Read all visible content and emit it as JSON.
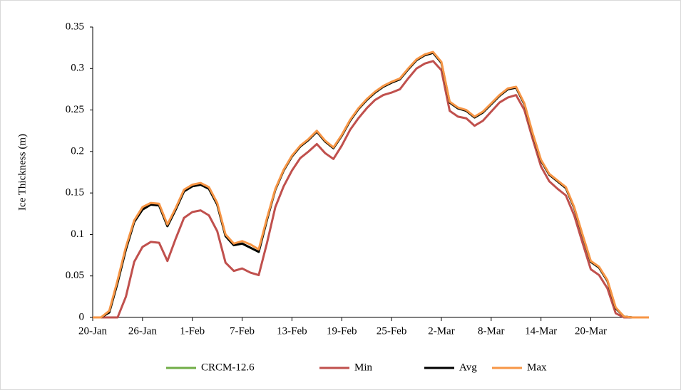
{
  "chart_data": {
    "type": "line",
    "y_label": "Ice Thickness (m)",
    "categories": [
      "20-Jan",
      null,
      null,
      null,
      null,
      null,
      "26-Jan",
      null,
      null,
      null,
      null,
      null,
      "1-Feb",
      null,
      null,
      null,
      null,
      null,
      "7-Feb",
      null,
      null,
      null,
      null,
      null,
      "13-Feb",
      null,
      null,
      null,
      null,
      null,
      "19-Feb",
      null,
      null,
      null,
      null,
      null,
      "25-Feb",
      null,
      null,
      null,
      null,
      null,
      "2-Mar",
      null,
      null,
      null,
      null,
      null,
      "8-Mar",
      null,
      null,
      null,
      null,
      null,
      "14-Mar",
      null,
      null,
      null,
      null,
      null,
      "20-Mar",
      null,
      null,
      null,
      null,
      null,
      null,
      null
    ],
    "ylim": [
      0,
      0.35
    ],
    "yticks": [
      0,
      0.05,
      0.1,
      0.15,
      0.2,
      0.25,
      0.3,
      0.35
    ],
    "grid": false,
    "legend": "bottom",
    "series": [
      {
        "name": "CRCM-12.6",
        "color": "#70ad47",
        "values": [
          0,
          0,
          0.006,
          0.042,
          0.082,
          0.115,
          0.13,
          0.136,
          0.135,
          0.11,
          0.13,
          0.152,
          0.158,
          0.16,
          0.155,
          0.136,
          0.098,
          0.087,
          0.089,
          0.084,
          0.079,
          0.118,
          0.154,
          0.177,
          0.194,
          0.206,
          0.214,
          0.224,
          0.212,
          0.204,
          0.219,
          0.237,
          0.251,
          0.262,
          0.271,
          0.278,
          0.283,
          0.287,
          0.299,
          0.31,
          0.316,
          0.319,
          0.307,
          0.259,
          0.252,
          0.249,
          0.241,
          0.247,
          0.257,
          0.267,
          0.275,
          0.277,
          0.257,
          0.221,
          0.189,
          0.172,
          0.164,
          0.156,
          0.132,
          0.099,
          0.067,
          0.06,
          0.044,
          0.011,
          0.001,
          0,
          0,
          0
        ]
      },
      {
        "name": "Min",
        "color": "#c0504d",
        "values": [
          0,
          0,
          0,
          0,
          0.025,
          0.067,
          0.085,
          0.091,
          0.09,
          0.068,
          0.095,
          0.12,
          0.127,
          0.129,
          0.123,
          0.104,
          0.066,
          0.056,
          0.059,
          0.054,
          0.051,
          0.09,
          0.133,
          0.158,
          0.177,
          0.192,
          0.2,
          0.209,
          0.198,
          0.191,
          0.207,
          0.226,
          0.24,
          0.252,
          0.262,
          0.268,
          0.271,
          0.275,
          0.288,
          0.3,
          0.306,
          0.309,
          0.298,
          0.249,
          0.242,
          0.24,
          0.231,
          0.237,
          0.248,
          0.259,
          0.265,
          0.268,
          0.25,
          0.215,
          0.182,
          0.164,
          0.155,
          0.147,
          0.123,
          0.09,
          0.058,
          0.051,
          0.035,
          0.005,
          0,
          0,
          0,
          0
        ]
      },
      {
        "name": "Avg",
        "color": "#000000",
        "values": [
          0,
          0,
          0.006,
          0.042,
          0.082,
          0.115,
          0.13,
          0.136,
          0.135,
          0.11,
          0.13,
          0.152,
          0.158,
          0.16,
          0.155,
          0.136,
          0.098,
          0.087,
          0.089,
          0.084,
          0.079,
          0.118,
          0.154,
          0.177,
          0.194,
          0.206,
          0.214,
          0.224,
          0.212,
          0.204,
          0.219,
          0.237,
          0.251,
          0.262,
          0.271,
          0.278,
          0.283,
          0.287,
          0.299,
          0.31,
          0.316,
          0.319,
          0.307,
          0.259,
          0.252,
          0.249,
          0.241,
          0.247,
          0.257,
          0.267,
          0.275,
          0.277,
          0.257,
          0.221,
          0.189,
          0.172,
          0.164,
          0.156,
          0.132,
          0.099,
          0.067,
          0.06,
          0.044,
          0.011,
          0.001,
          0,
          0,
          0
        ]
      },
      {
        "name": "Max",
        "color": "#f79646",
        "values": [
          0,
          0,
          0.008,
          0.045,
          0.085,
          0.117,
          0.133,
          0.138,
          0.137,
          0.112,
          0.132,
          0.154,
          0.16,
          0.162,
          0.157,
          0.138,
          0.1,
          0.089,
          0.092,
          0.088,
          0.082,
          0.12,
          0.155,
          0.178,
          0.195,
          0.207,
          0.215,
          0.225,
          0.213,
          0.205,
          0.22,
          0.238,
          0.252,
          0.263,
          0.272,
          0.279,
          0.284,
          0.288,
          0.3,
          0.311,
          0.317,
          0.32,
          0.308,
          0.26,
          0.253,
          0.25,
          0.242,
          0.248,
          0.258,
          0.268,
          0.276,
          0.278,
          0.258,
          0.222,
          0.19,
          0.173,
          0.165,
          0.157,
          0.133,
          0.1,
          0.068,
          0.061,
          0.045,
          0.012,
          0.001,
          0,
          0,
          0
        ]
      }
    ]
  }
}
